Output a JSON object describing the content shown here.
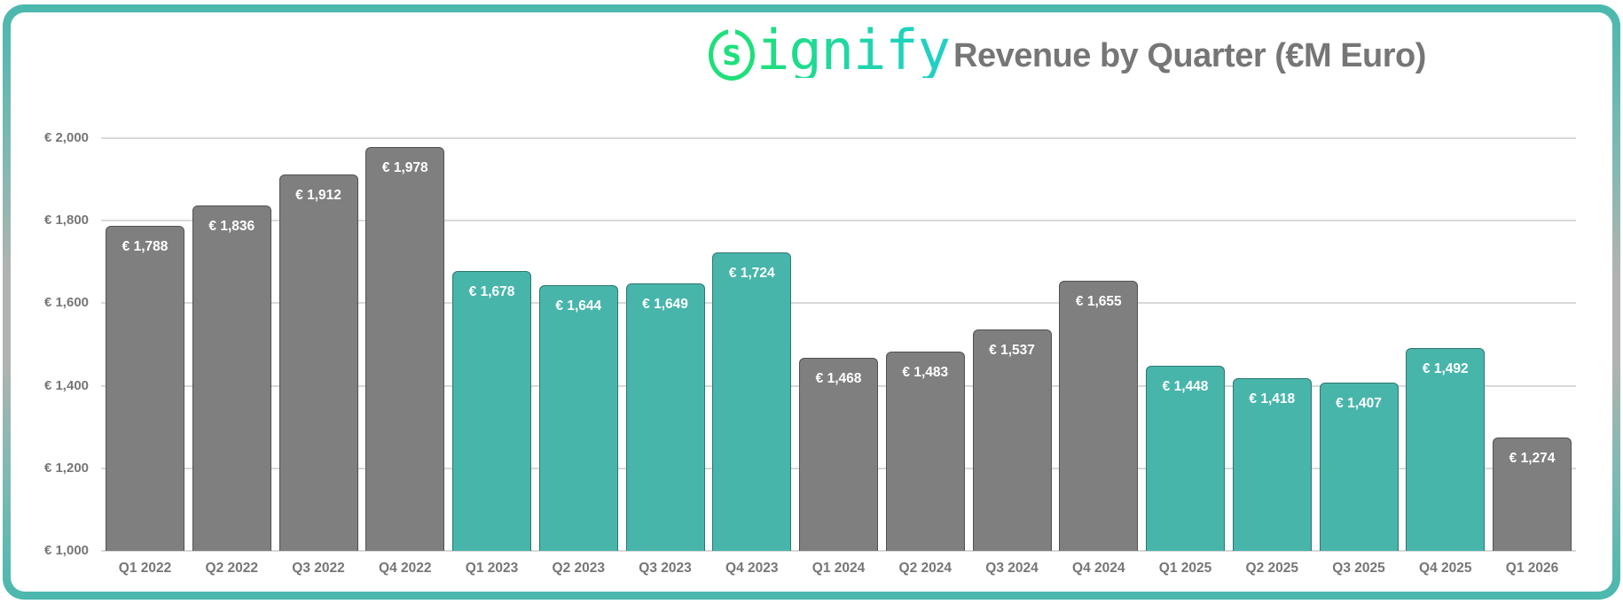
{
  "header": {
    "logo_text": "signify",
    "logo_s": "s",
    "title": "Revenue by Quarter (€M Euro)"
  },
  "colors": {
    "gray_bar": "#7f7f7f",
    "teal_bar": "#48b5ab",
    "logo_green": "#1ee07a",
    "logo_teal": "#22cfc6",
    "title_text": "#767676",
    "frame_teal": "#4ab8ae",
    "frame_gray": "#b0b3b0",
    "gridline": "#d9d9d9"
  },
  "chart_data": {
    "type": "bar",
    "title": "Revenue by Quarter (€M Euro)",
    "xlabel": "",
    "ylabel": "",
    "ylim": [
      1000,
      2000
    ],
    "yticks": [
      1000,
      1200,
      1400,
      1600,
      1800,
      2000
    ],
    "ytick_labels": [
      "€ 1,000",
      "€ 1,200",
      "€ 1,400",
      "€ 1,600",
      "€ 1,800",
      "€ 2,000"
    ],
    "grid": true,
    "legend": "none",
    "categories": [
      "Q1 2022",
      "Q2 2022",
      "Q3 2022",
      "Q4 2022",
      "Q1 2023",
      "Q2 2023",
      "Q3 2023",
      "Q4 2023",
      "Q1 2024",
      "Q2 2024",
      "Q3 2024",
      "Q4 2024",
      "Q1 2025",
      "Q2 2025",
      "Q3 2025",
      "Q4 2025",
      "Q1 2026"
    ],
    "values": [
      1788,
      1836,
      1912,
      1978,
      1678,
      1644,
      1649,
      1724,
      1468,
      1483,
      1537,
      1655,
      1448,
      1418,
      1407,
      1492,
      1274
    ],
    "value_labels": [
      "€ 1,788",
      "€ 1,836",
      "€ 1,912",
      "€ 1,978",
      "€ 1,678",
      "€ 1,644",
      "€ 1,649",
      "€ 1,724",
      "€ 1,468",
      "€ 1,483",
      "€ 1,537",
      "€ 1,655",
      "€ 1,448",
      "€ 1,418",
      "€ 1,407",
      "€ 1,492",
      "€ 1,274"
    ],
    "bar_colors": [
      "gray",
      "gray",
      "gray",
      "gray",
      "teal",
      "teal",
      "teal",
      "teal",
      "gray",
      "gray",
      "gray",
      "gray",
      "teal",
      "teal",
      "teal",
      "teal",
      "gray"
    ]
  }
}
